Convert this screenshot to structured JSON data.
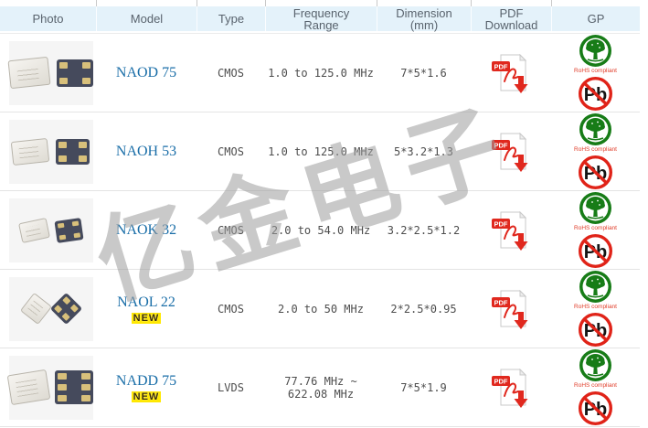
{
  "header": {
    "columns": [
      {
        "label": "Photo"
      },
      {
        "label": "Model"
      },
      {
        "label": "Type"
      },
      {
        "label": "Frequency Range"
      },
      {
        "label": "Dimension (mm)"
      },
      {
        "label": "PDF Download"
      },
      {
        "label": "GP"
      }
    ]
  },
  "watermark": "亿金电子",
  "badge_new": "NEW",
  "icons": {
    "pdf_label": "PDF",
    "rohs_caption": "RoHS compliant",
    "pb_label": "Pb"
  },
  "colors": {
    "header_bg": "#e4f2fa",
    "model_link": "#1a6ea8",
    "rohs_green": "#177c17",
    "alert_red": "#e02318",
    "new_badge_bg": "#ffe800"
  },
  "rows": [
    {
      "model": "NAOD 75",
      "is_new": false,
      "type": "CMOS",
      "frequency": "1.0 to 125.0 MHz",
      "dimension": "7*5*1.6",
      "photo": {
        "pads": 4,
        "size": "large"
      }
    },
    {
      "model": "NAOH 53",
      "is_new": false,
      "type": "CMOS",
      "frequency": "1.0 to 125.0 MHz",
      "dimension": "5*3.2*1.3",
      "photo": {
        "pads": 4,
        "size": "medium"
      }
    },
    {
      "model": "NAOK 32",
      "is_new": false,
      "type": "CMOS",
      "frequency": "2.0 to 54.0 MHz",
      "dimension": "3.2*2.5*1.2",
      "photo": {
        "pads": 4,
        "size": "small"
      }
    },
    {
      "model": "NAOL 22",
      "is_new": true,
      "type": "CMOS",
      "frequency": "2.0 to 50 MHz",
      "dimension": "2*2.5*0.95",
      "photo": {
        "pads": 4,
        "size": "tiny"
      }
    },
    {
      "model": "NADD 75",
      "is_new": true,
      "type": "LVDS",
      "frequency": "77.76 MHz ~ 622.08 MHz",
      "dimension": "7*5*1.9",
      "photo": {
        "pads": 6,
        "size": "xl"
      }
    }
  ]
}
